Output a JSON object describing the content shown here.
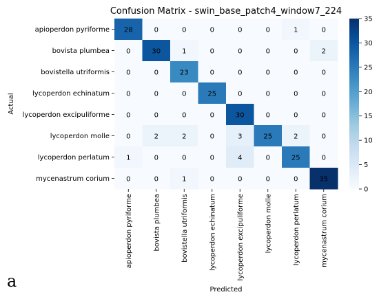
{
  "chart_data": {
    "type": "heatmap",
    "title": "Confusion Matrix - swin_base_patch4_window7_224",
    "xlabel": "Predicted",
    "ylabel": "Actual",
    "row_labels": [
      "apioperdon pyriforme",
      "bovista plumbea",
      "bovistella utriformis",
      "lycoperdon echinatum",
      "lycoperdon excipuliforme",
      "lycoperdon molle",
      "lycoperdon perlatum",
      "mycenastrum corium"
    ],
    "col_labels": [
      "apioperdon pyriforme",
      "bovista plumbea",
      "bovistella utriformis",
      "lycoperdon echinatum",
      "lycoperdon excipuliforme",
      "lycoperdon molle",
      "lycoperdon perlatum",
      "mycenastrum corium"
    ],
    "values": [
      [
        28,
        0,
        0,
        0,
        0,
        0,
        1,
        0
      ],
      [
        0,
        30,
        1,
        0,
        0,
        0,
        0,
        2
      ],
      [
        0,
        0,
        23,
        0,
        0,
        0,
        0,
        0
      ],
      [
        0,
        0,
        0,
        25,
        0,
        0,
        0,
        0
      ],
      [
        0,
        0,
        0,
        0,
        30,
        0,
        0,
        0
      ],
      [
        0,
        2,
        2,
        0,
        3,
        25,
        2,
        0
      ],
      [
        1,
        0,
        0,
        0,
        4,
        0,
        25,
        0
      ],
      [
        0,
        0,
        1,
        0,
        0,
        0,
        0,
        35
      ]
    ],
    "colorbar": {
      "min": 0,
      "max": 35,
      "ticks": [
        0,
        5,
        10,
        15,
        20,
        25,
        30,
        35
      ]
    },
    "colormap": [
      "#f7fbff",
      "#deebf7",
      "#c6dbef",
      "#9ecae1",
      "#6baed6",
      "#4292c6",
      "#2171b5",
      "#08519c",
      "#08306b"
    ]
  },
  "figure": {
    "panel_label": "a"
  }
}
